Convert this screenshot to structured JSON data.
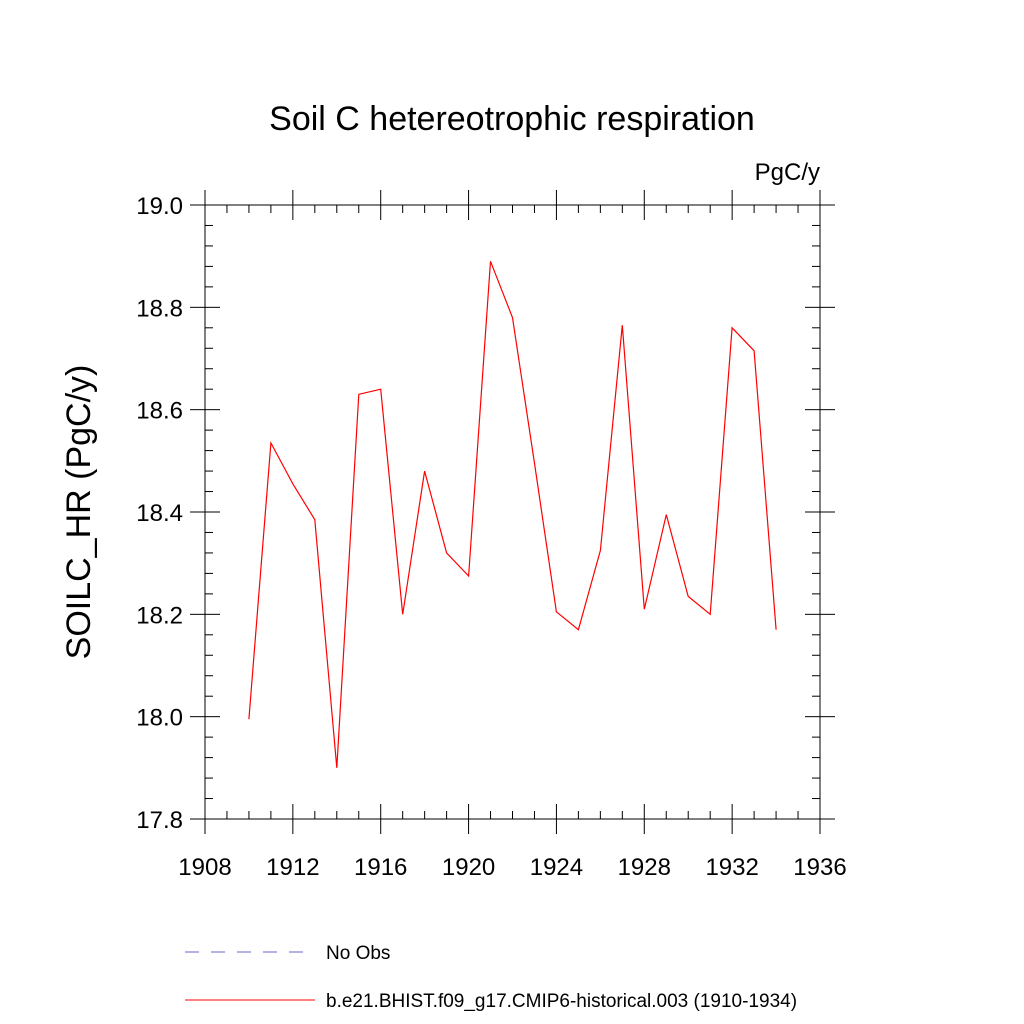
{
  "chart_data": {
    "type": "line",
    "title": "Soil C hetereotrophic respiration",
    "units_label": "PgC/y",
    "ylabel": "SOILC_HR  (PgC/y)",
    "xlabel": "",
    "xlim": [
      1908,
      1936
    ],
    "ylim": [
      17.8,
      19.0
    ],
    "x_ticks": [
      1908,
      1912,
      1916,
      1920,
      1924,
      1928,
      1932,
      1936
    ],
    "y_ticks": [
      "17.8",
      "18.0",
      "18.2",
      "18.4",
      "18.6",
      "18.8",
      "19.0"
    ],
    "grid": false,
    "legend_position": "bottom",
    "series": [
      {
        "name": "No Obs",
        "color": "#6666cc",
        "dash": "dashed",
        "x": [],
        "y": []
      },
      {
        "name": "b.e21.BHIST.f09_g17.CMIP6-historical.003 (1910-1934)",
        "color": "#ff0000",
        "dash": "solid",
        "x": [
          1910,
          1911,
          1912,
          1913,
          1914,
          1915,
          1916,
          1917,
          1918,
          1919,
          1920,
          1921,
          1922,
          1923,
          1924,
          1925,
          1926,
          1927,
          1928,
          1929,
          1930,
          1931,
          1932,
          1933,
          1934
        ],
        "y": [
          17.995,
          18.535,
          18.455,
          18.385,
          17.9,
          18.63,
          18.64,
          18.2,
          18.48,
          18.32,
          18.275,
          18.89,
          18.78,
          18.495,
          18.205,
          18.17,
          18.325,
          18.765,
          18.21,
          18.395,
          18.235,
          18.2,
          18.76,
          18.715,
          18.17
        ]
      }
    ]
  }
}
